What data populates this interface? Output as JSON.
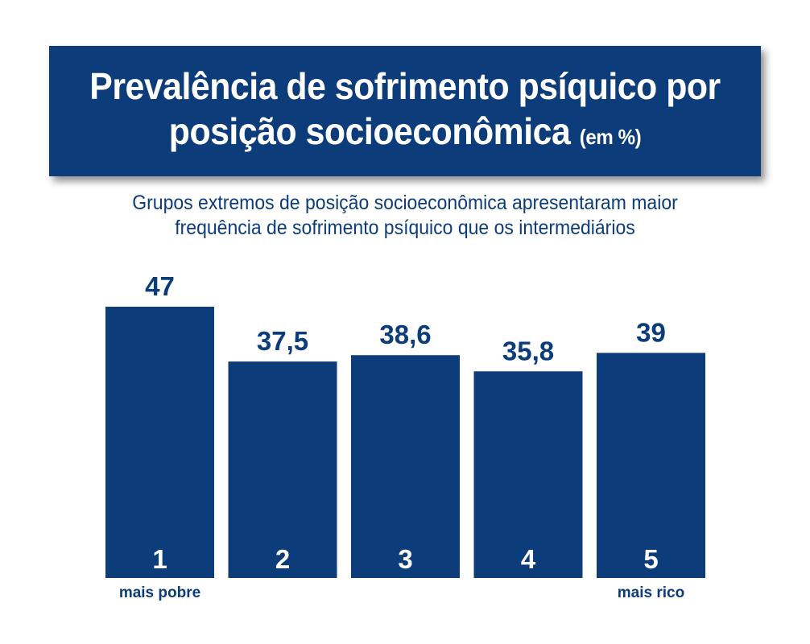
{
  "header": {
    "title_line1": "Prevalência de sofrimento psíquico por",
    "title_line2": "posição socioeconômica",
    "title_unit": "(em %)",
    "subtitle_line1": "Grupos extremos de posição socioeconômica apresentaram maior",
    "subtitle_line2": "frequência de sofrimento psíquico que os intermediários"
  },
  "chart_data": {
    "type": "bar",
    "title": "Prevalência de sofrimento psíquico por posição socioeconômica (em %)",
    "categories": [
      "1",
      "2",
      "3",
      "4",
      "5"
    ],
    "values": [
      47,
      37.5,
      38.6,
      35.8,
      39
    ],
    "value_labels": [
      "47",
      "37,5",
      "38,6",
      "35,8",
      "39"
    ],
    "category_notes": [
      "mais pobre",
      "",
      "",
      "",
      "mais rico"
    ],
    "xlabel": "",
    "ylabel": "",
    "ylim": [
      0,
      47
    ],
    "grid": false,
    "legend": "none",
    "bar_color": "#0c3c7a",
    "text_color": "#0c3c7a",
    "inner_label_color": "#ffffff"
  }
}
